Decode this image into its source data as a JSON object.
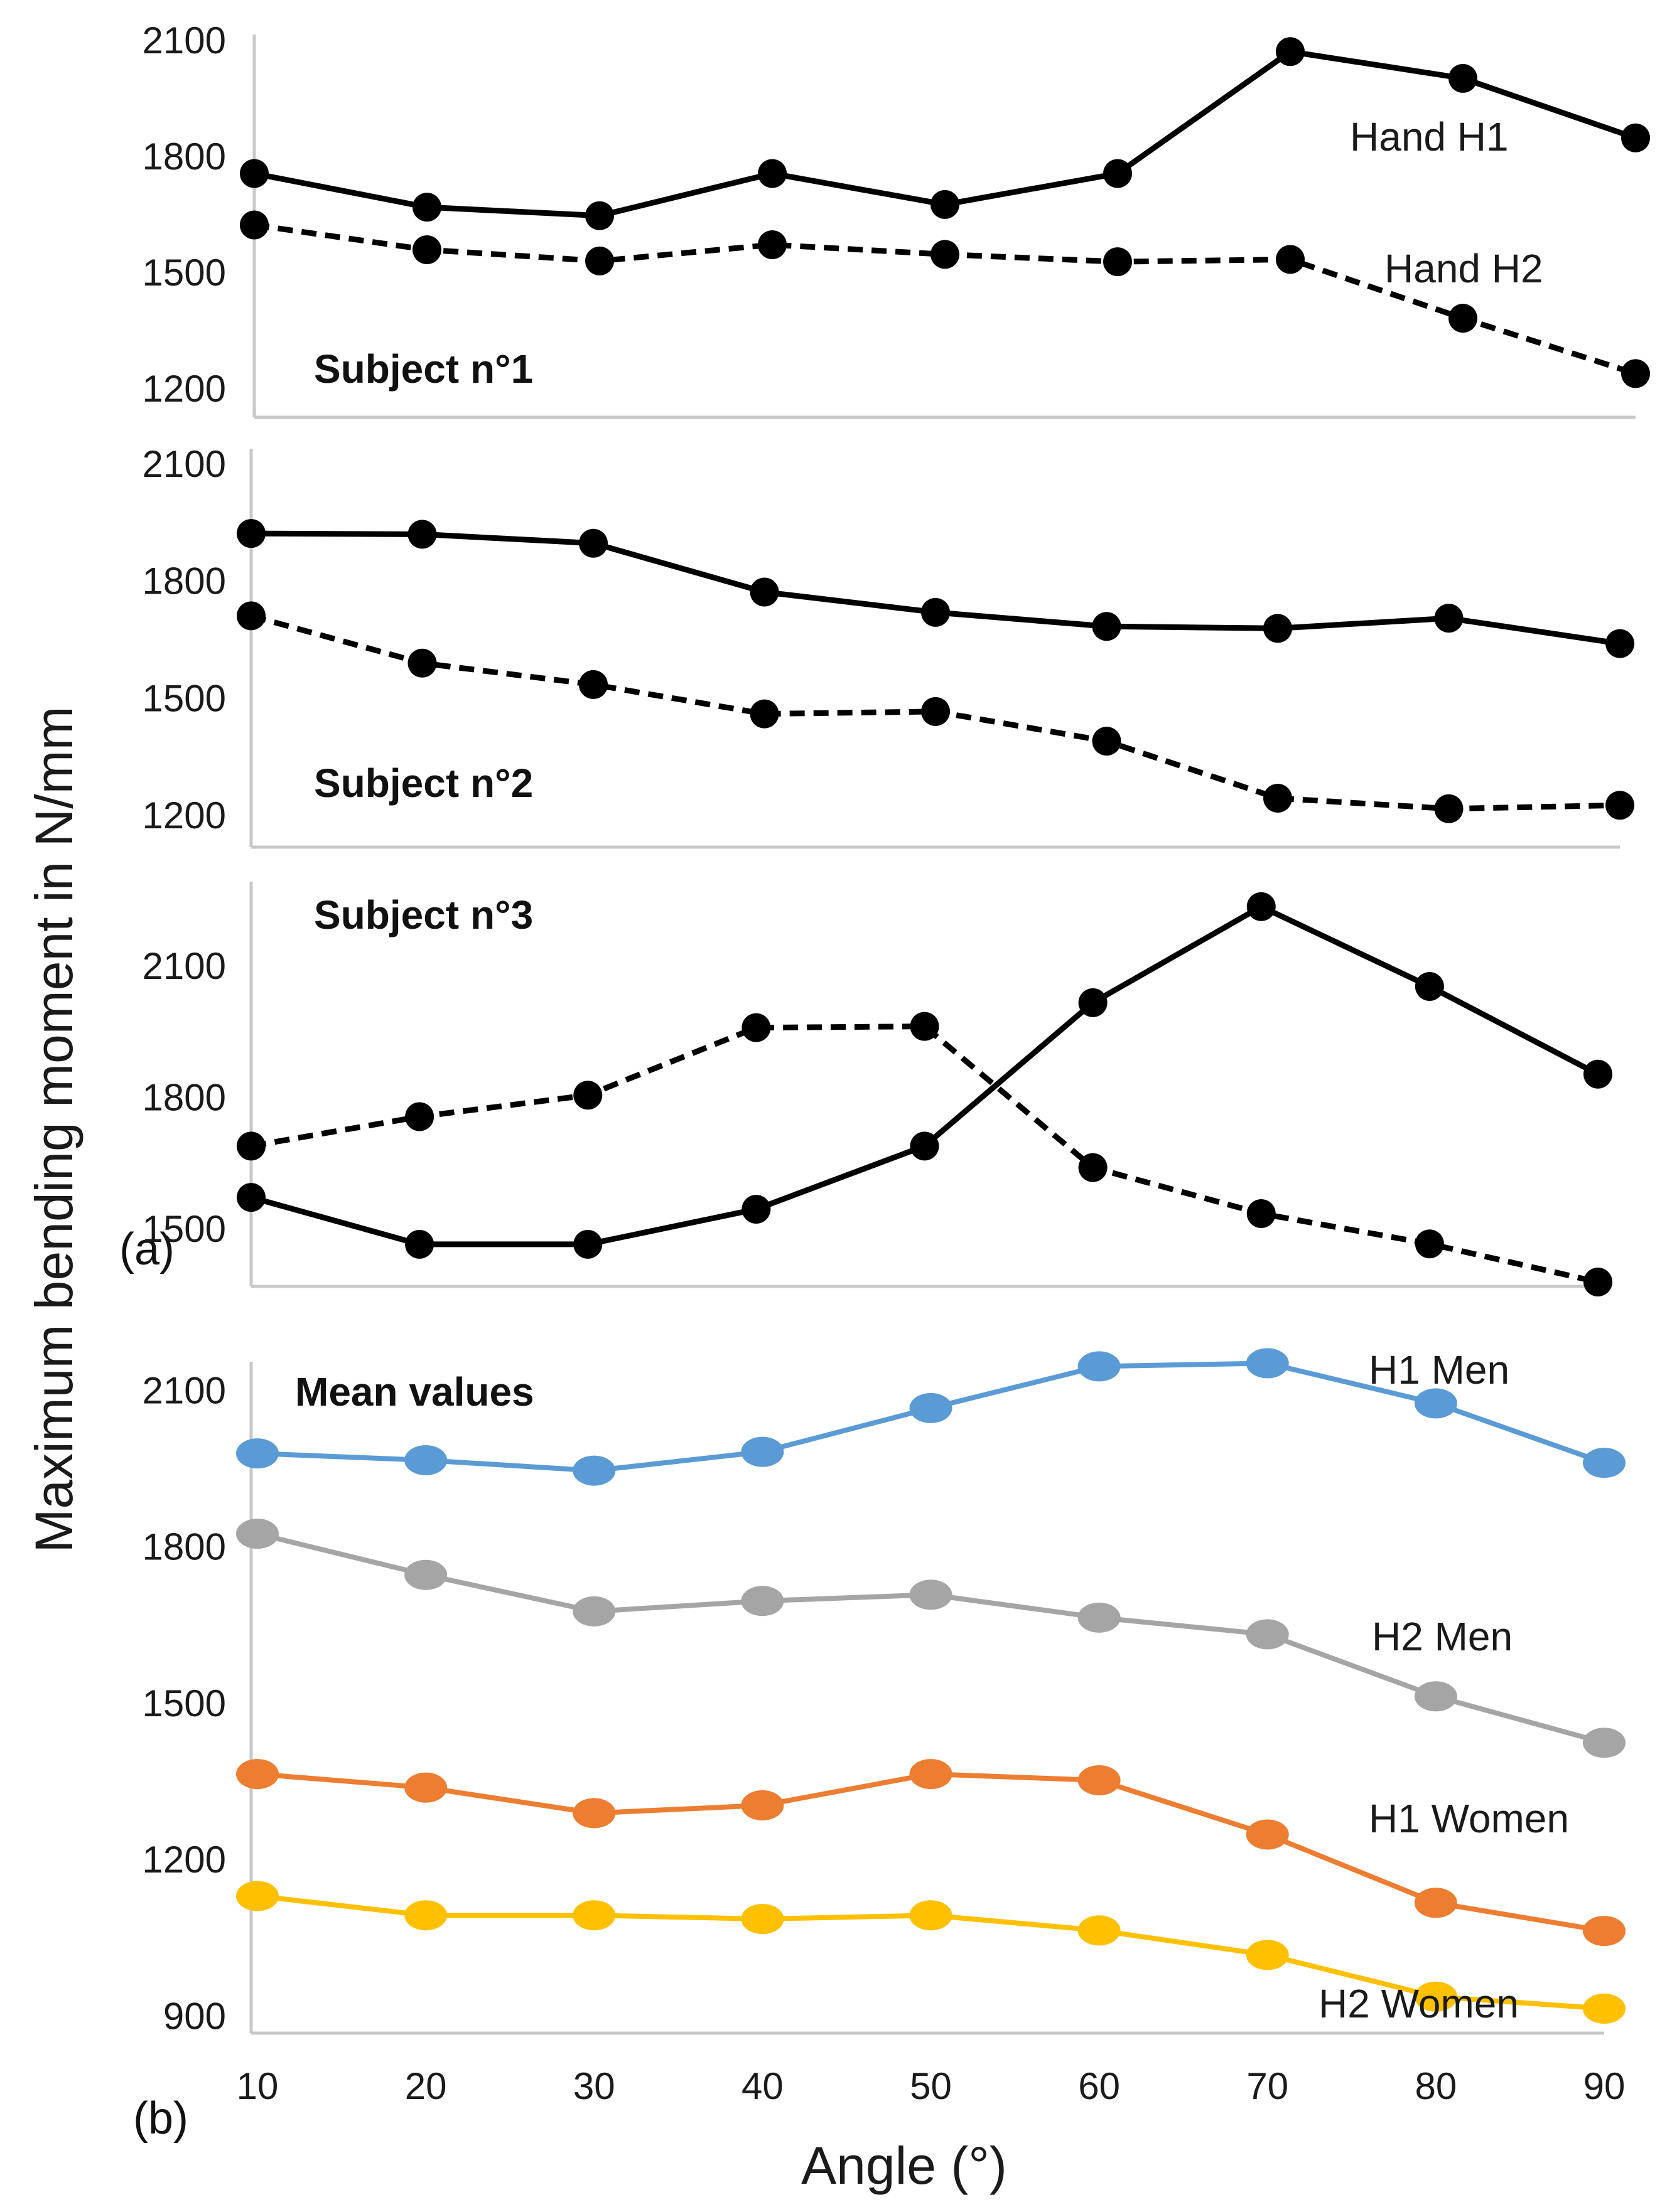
{
  "chart_data": [
    {
      "type": "line",
      "panel": "a",
      "title": "Subject n°1",
      "x": [
        10,
        20,
        30,
        40,
        50,
        60,
        70,
        80,
        90
      ],
      "ylim": [
        1200,
        2100
      ],
      "yticks": [
        "2100",
        "1800",
        "1500",
        "1200"
      ],
      "series": [
        {
          "name": "Hand H1",
          "label": "Hand H1",
          "style": "solid",
          "color": "#000000",
          "values": [
            1757,
            1670,
            1648,
            1757,
            1677,
            1757,
            2072,
            2003,
            1849
          ]
        },
        {
          "name": "Hand H2",
          "label": "Hand H2",
          "style": "dashed",
          "color": "#000000",
          "values": [
            1624,
            1560,
            1531,
            1573,
            1548,
            1529,
            1535,
            1383,
            1240
          ]
        }
      ]
    },
    {
      "type": "line",
      "panel": "a",
      "title": "Subject n°2",
      "x": [
        10,
        20,
        30,
        40,
        50,
        60,
        70,
        80,
        90
      ],
      "ylim": [
        1200,
        2100
      ],
      "yticks": [
        "2100",
        "1800",
        "1500",
        "1200"
      ],
      "series": [
        {
          "name": "Hand H1",
          "style": "solid",
          "color": "#000000",
          "values": [
            1923,
            1921,
            1898,
            1773,
            1721,
            1685,
            1680,
            1706,
            1641
          ]
        },
        {
          "name": "Hand H2",
          "style": "dashed",
          "color": "#000000",
          "values": [
            1712,
            1591,
            1536,
            1461,
            1467,
            1391,
            1245,
            1218,
            1227
          ]
        }
      ]
    },
    {
      "type": "line",
      "panel": "a",
      "title": "Subject n°3",
      "x": [
        10,
        20,
        30,
        40,
        50,
        60,
        70,
        80,
        90
      ],
      "ylim": [
        1390,
        2250
      ],
      "yticks": [
        "2100",
        "1800",
        "1500"
      ],
      "series": [
        {
          "name": "Hand H1",
          "style": "solid",
          "color": "#000000",
          "values": [
            1573,
            1466,
            1466,
            1546,
            1690,
            2017,
            2236,
            2054,
            1854
          ]
        },
        {
          "name": "Hand H2",
          "style": "dashed",
          "color": "#000000",
          "values": [
            1690,
            1757,
            1806,
            1960,
            1963,
            1641,
            1536,
            1467,
            1380
          ]
        }
      ]
    },
    {
      "type": "line",
      "panel": "b",
      "title": "Mean values",
      "x": [
        10,
        20,
        30,
        40,
        50,
        60,
        70,
        80,
        90
      ],
      "xticks": [
        "10",
        "20",
        "30",
        "40",
        "50",
        "60",
        "70",
        "80",
        "90"
      ],
      "ylim": [
        880,
        2180
      ],
      "yticks": [
        "2100",
        "1800",
        "1500",
        "1200",
        "900"
      ],
      "xlabel": "Angle (°)",
      "series": [
        {
          "name": "H1 Men",
          "label": "H1 Men",
          "color": "#5b9bd5",
          "values": [
            1980,
            1967,
            1947,
            1983,
            2067,
            2147,
            2153,
            2076,
            1962
          ]
        },
        {
          "name": "H2 Men",
          "label": "H2 Men",
          "color": "#a5a5a5",
          "values": [
            1826,
            1747,
            1677,
            1697,
            1709,
            1665,
            1633,
            1514,
            1425
          ]
        },
        {
          "name": "H1 Women",
          "label": "H1 Women",
          "color": "#ed7d31",
          "values": [
            1365,
            1339,
            1290,
            1305,
            1365,
            1353,
            1249,
            1118,
            1064
          ]
        },
        {
          "name": "H2 Women",
          "label": "H2 Women",
          "color": "#ffc000",
          "values": [
            1131,
            1094,
            1094,
            1087,
            1094,
            1065,
            1018,
            938,
            915
          ]
        }
      ]
    }
  ],
  "figure": {
    "ylabel": "Maximum bending moment in N/mm",
    "part_a_label": "(a)",
    "part_b_label": "(b)"
  }
}
